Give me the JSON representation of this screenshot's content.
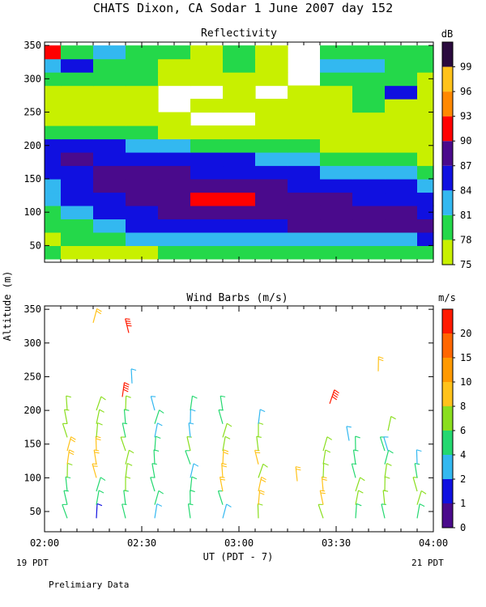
{
  "title": "CHATS Dixon, CA  Sodar   1 June 2007  day 152",
  "footer_note": "Prelimiary Data",
  "y_axis_label": "Altitude (m)",
  "x_axis": {
    "label": "UT  (PDT - 7)",
    "ticks": [
      "02:00",
      "02:30",
      "03:00",
      "03:30",
      "04:00"
    ],
    "range": [
      "02:00",
      "04:00"
    ],
    "left_sub": "19 PDT",
    "right_sub": "21 PDT"
  },
  "colors": {
    "refl_levels": [
      "#c8f000",
      "#24d84a",
      "#33b8f0",
      "#1010e0",
      "#4a0a8c",
      "#ff0000",
      "#ff8800",
      "#ffc21a",
      "#2a0a3e"
    ],
    "wind_levels": [
      "#4a0a8c",
      "#1010e0",
      "#33b8f0",
      "#24d870",
      "#8ade1e",
      "#ffc21a",
      "#ff9900",
      "#ff6600",
      "#ff1a00"
    ]
  },
  "chart_data": [
    {
      "type": "heatmap",
      "title": "Reflectivity",
      "colorbar_unit": "dB",
      "colorbar_ticks": [
        "75",
        "78",
        "81",
        "84",
        "87",
        "90",
        "93",
        "96",
        "99"
      ],
      "ylim": [
        25,
        355
      ],
      "yticks": [
        "50",
        "100",
        "150",
        "200",
        "250",
        "300",
        "350"
      ],
      "xlim_minutes": [
        0,
        120
      ],
      "altitudes": [
        40,
        60,
        80,
        100,
        120,
        140,
        160,
        180,
        200,
        220,
        240,
        260,
        280,
        300,
        320,
        340
      ],
      "times_minutes": [
        0,
        10,
        20,
        30,
        40,
        50,
        60,
        70,
        80,
        90,
        100,
        110,
        120
      ],
      "values_db": [
        [
          78,
          77,
          77,
          77,
          79,
          79,
          80,
          79,
          79,
          79,
          79,
          78,
          78
        ],
        [
          77,
          78,
          79,
          81,
          82,
          82,
          82,
          82,
          82,
          83,
          82,
          82,
          84
        ],
        [
          78,
          80,
          82,
          84,
          86,
          86,
          86,
          86,
          87,
          87,
          87,
          87,
          87
        ],
        [
          80,
          82,
          84,
          86,
          88,
          88,
          88,
          89,
          88,
          88,
          87,
          87,
          86
        ],
        [
          82,
          84,
          86,
          88,
          89,
          90,
          90,
          88,
          87,
          87,
          86,
          85,
          85
        ],
        [
          83,
          85,
          87,
          88,
          88,
          88,
          88,
          87,
          86,
          85,
          84,
          84,
          83
        ],
        [
          85,
          86,
          87,
          87,
          87,
          86,
          86,
          85,
          84,
          83,
          82,
          81,
          80
        ],
        [
          86,
          87,
          86,
          86,
          85,
          84,
          84,
          83,
          82,
          80,
          79,
          78,
          77
        ],
        [
          85,
          85,
          84,
          83,
          82,
          80,
          79,
          79,
          78,
          76,
          76,
          76,
          75
        ],
        [
          79,
          79,
          79,
          78,
          77,
          75,
          75,
          76,
          75,
          76,
          77,
          77,
          76
        ],
        [
          77,
          76,
          76,
          76,
          75,
          74,
          74,
          75,
          75,
          76,
          77,
          76,
          77
        ],
        [
          76,
          77,
          77,
          75,
          74,
          75,
          75,
          75,
          76,
          77,
          78,
          77,
          76
        ],
        [
          77,
          75,
          76,
          76,
          74,
          74,
          75,
          74,
          75,
          77,
          78,
          85,
          77
        ],
        [
          79,
          78,
          78,
          78,
          75,
          76,
          75,
          76,
          74,
          78,
          79,
          78,
          77
        ],
        [
          81,
          84,
          79,
          79,
          77,
          76,
          80,
          77,
          74,
          81,
          83,
          78,
          79
        ],
        [
          92,
          80,
          81,
          78,
          78,
          77,
          79,
          77,
          74,
          78,
          80,
          79,
          79
        ]
      ]
    },
    {
      "type": "scatter",
      "title": "Wind Barbs (m/s)",
      "colorbar_unit": "m/s",
      "colorbar_ticks": [
        "0",
        "1",
        "2",
        "4",
        "6",
        "8",
        "10",
        "15",
        "20"
      ],
      "ylim": [
        20,
        355
      ],
      "yticks": [
        "50",
        "100",
        "150",
        "200",
        "250",
        "300",
        "350"
      ],
      "xlim_minutes": [
        0,
        120
      ],
      "profile_times_minutes": [
        7,
        16,
        25,
        34,
        45,
        55,
        66,
        86,
        96,
        105,
        115
      ],
      "heights_m": [
        40,
        60,
        80,
        100,
        120,
        140,
        160,
        180,
        200
      ],
      "speeds_ms": [
        [
          4,
          5,
          4,
          6,
          8,
          8,
          7,
          6,
          7
        ],
        [
          1,
          4,
          5,
          8,
          8,
          8,
          7,
          7,
          7
        ],
        [
          4,
          5,
          6,
          7,
          7,
          6,
          5,
          5,
          6
        ],
        [
          3,
          4,
          5,
          5,
          5,
          4,
          3,
          4,
          3
        ],
        [
          4,
          5,
          4,
          3,
          4,
          6,
          3,
          2,
          4
        ],
        [
          3,
          5,
          8,
          8,
          8,
          7,
          6,
          5,
          5
        ],
        [
          6,
          8,
          8,
          7,
          9,
          7,
          6,
          3,
          0
        ],
        [
          6,
          8,
          8,
          7,
          6,
          6,
          0,
          0,
          0
        ],
        [
          4,
          6,
          6,
          5,
          4,
          4,
          0,
          0,
          0
        ],
        [
          5,
          7,
          6,
          6,
          5,
          4,
          0,
          0,
          0
        ],
        [
          4,
          6,
          6,
          4,
          3,
          0,
          0,
          0,
          0
        ]
      ],
      "isolated_barbs": [
        {
          "t": 15,
          "h": 330,
          "s": 9
        },
        {
          "t": 26,
          "h": 315,
          "s": 21
        },
        {
          "t": 27,
          "h": 240,
          "s": 2
        },
        {
          "t": 24,
          "h": 220,
          "s": 22
        },
        {
          "t": 88,
          "h": 210,
          "s": 22
        },
        {
          "t": 94,
          "h": 155,
          "s": 2
        },
        {
          "t": 103,
          "h": 258,
          "s": 9
        },
        {
          "t": 106,
          "h": 170,
          "s": 6
        },
        {
          "t": 106,
          "h": 140,
          "s": 3
        },
        {
          "t": 78,
          "h": 95,
          "s": 9
        }
      ]
    }
  ]
}
